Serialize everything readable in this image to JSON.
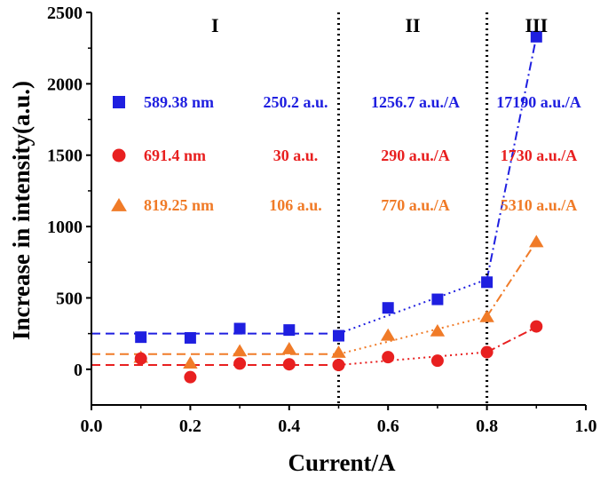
{
  "chart_data": {
    "type": "scatter",
    "xlabel": "Current/A",
    "ylabel": "Increase in intensity(a.u.)",
    "xlim": [
      0.0,
      1.0
    ],
    "ylim": [
      -250,
      2500
    ],
    "x_ticks": [
      "0.0",
      "0.2",
      "0.4",
      "0.6",
      "0.8",
      "1.0"
    ],
    "x_tick_values": [
      0.0,
      0.2,
      0.4,
      0.6,
      0.8,
      1.0
    ],
    "y_ticks": [
      "0",
      "500",
      "1000",
      "1500",
      "2000",
      "2500"
    ],
    "y_tick_values": [
      0,
      500,
      1000,
      1500,
      2000,
      2500
    ],
    "grid": false,
    "legend_position": "upper-left",
    "regions": [
      {
        "label": "I",
        "x_start": 0.0,
        "x_end": 0.5
      },
      {
        "label": "II",
        "x_start": 0.5,
        "x_end": 0.8
      },
      {
        "label": "III",
        "x_start": 0.8,
        "x_end": 1.0
      }
    ],
    "region_boundaries": [
      0.5,
      0.8
    ],
    "x": [
      0.1,
      0.2,
      0.3,
      0.4,
      0.5,
      0.6,
      0.7,
      0.8,
      0.9
    ],
    "series": [
      {
        "name": "589.38 nm",
        "marker": "square",
        "color": "#1f1fe0",
        "values": [
          225,
          220,
          285,
          275,
          235,
          430,
          490,
          610,
          2330
        ],
        "region_values": [
          "250.2 a.u.",
          "1256.7 a.u./A",
          "17190 a.u./A"
        ],
        "flat_level": 250.2,
        "fit_region2": [
          [
            0.5,
            250
          ],
          [
            0.8,
            630
          ]
        ],
        "fit_region3": [
          [
            0.8,
            630
          ],
          [
            0.9,
            2330
          ]
        ]
      },
      {
        "name": "691.4 nm",
        "marker": "circle",
        "color": "#e82020",
        "values": [
          75,
          -55,
          40,
          35,
          30,
          85,
          60,
          120,
          300
        ],
        "region_values": [
          "30 a.u.",
          "290 a.u./A",
          "1730 a.u./A"
        ],
        "flat_level": 30,
        "fit_region2": [
          [
            0.5,
            30
          ],
          [
            0.8,
            120
          ]
        ],
        "fit_region3": [
          [
            0.8,
            120
          ],
          [
            0.9,
            295
          ]
        ]
      },
      {
        "name": "819.25 nm",
        "marker": "triangle",
        "color": "#f07b28",
        "values": [
          85,
          45,
          130,
          145,
          120,
          240,
          270,
          370,
          895
        ],
        "region_values": [
          "106 a.u.",
          "770 a.u./A",
          "5310 a.u./A"
        ],
        "flat_level": 106,
        "fit_region2": [
          [
            0.5,
            106
          ],
          [
            0.8,
            370
          ]
        ],
        "fit_region3": [
          [
            0.8,
            370
          ],
          [
            0.9,
            895
          ]
        ]
      }
    ]
  }
}
